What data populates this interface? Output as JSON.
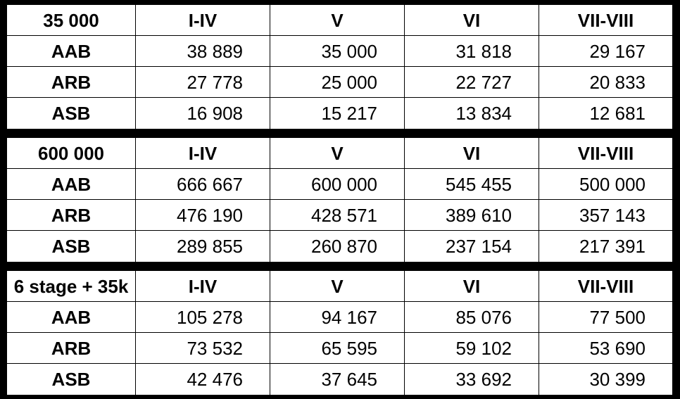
{
  "tables": [
    {
      "corner": "35 000",
      "columns": [
        "I-IV",
        "V",
        "VI",
        "VII-VIII"
      ],
      "rows": [
        {
          "label": "AAB",
          "values": [
            "38 889",
            "35 000",
            "31 818",
            "29 167"
          ]
        },
        {
          "label": "ARB",
          "values": [
            "27 778",
            "25 000",
            "22 727",
            "20 833"
          ]
        },
        {
          "label": "ASB",
          "values": [
            "16 908",
            "15 217",
            "13 834",
            "12 681"
          ]
        }
      ]
    },
    {
      "corner": "600 000",
      "columns": [
        "I-IV",
        "V",
        "VI",
        "VII-VIII"
      ],
      "rows": [
        {
          "label": "AAB",
          "values": [
            "666 667",
            "600 000",
            "545 455",
            "500 000"
          ]
        },
        {
          "label": "ARB",
          "values": [
            "476 190",
            "428 571",
            "389 610",
            "357 143"
          ]
        },
        {
          "label": "ASB",
          "values": [
            "289 855",
            "260 870",
            "237 154",
            "217 391"
          ]
        }
      ]
    },
    {
      "corner": "6 stage + 35k",
      "columns": [
        "I-IV",
        "V",
        "VI",
        "VII-VIII"
      ],
      "rows": [
        {
          "label": "AAB",
          "values": [
            "105 278",
            "94 167",
            "85 076",
            "77 500"
          ]
        },
        {
          "label": "ARB",
          "values": [
            "73 532",
            "65 595",
            "59 102",
            "53 690"
          ]
        },
        {
          "label": "ASB",
          "values": [
            "42 476",
            "37 645",
            "33 692",
            "30 399"
          ]
        }
      ]
    }
  ]
}
